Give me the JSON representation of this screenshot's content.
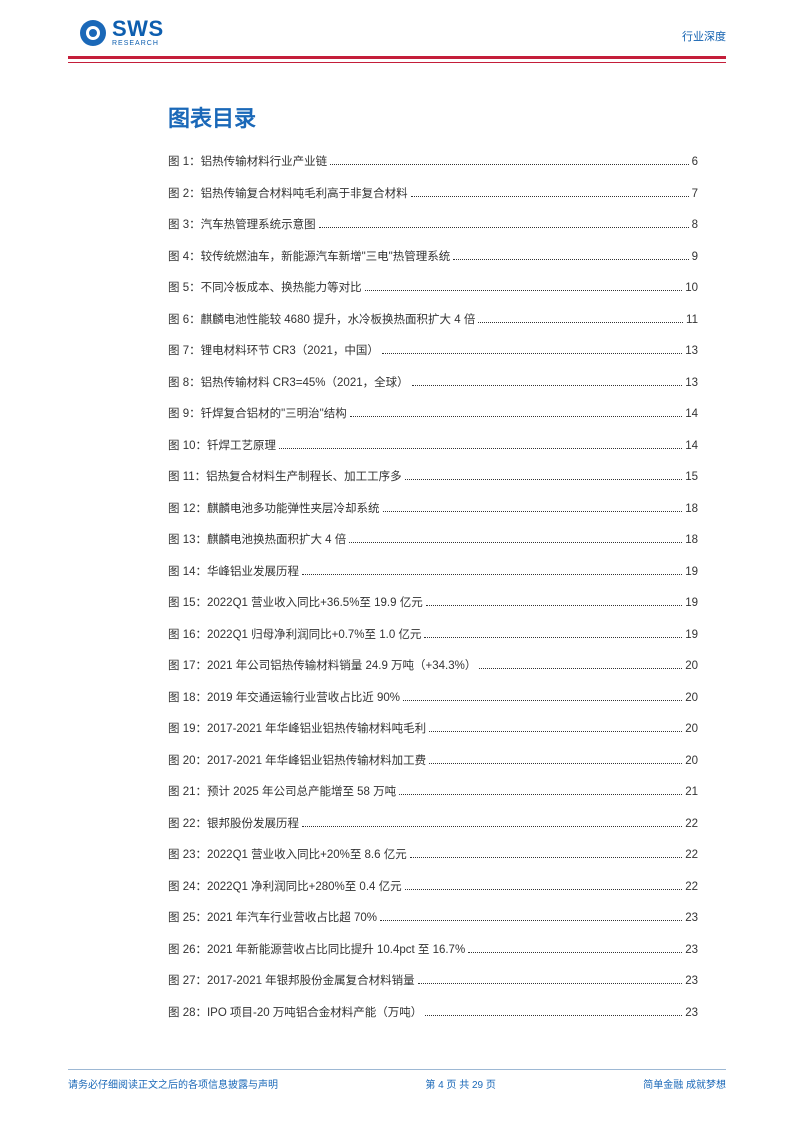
{
  "header": {
    "logo_main": "SWS",
    "logo_sub": "RESEARCH",
    "right_text": "行业深度"
  },
  "title": "图表目录",
  "toc": [
    {
      "label": "图 1：铝热传输材料行业产业链",
      "page": "6"
    },
    {
      "label": "图 2：铝热传输复合材料吨毛利高于非复合材料",
      "page": "7"
    },
    {
      "label": "图 3：汽车热管理系统示意图",
      "page": "8"
    },
    {
      "label": "图 4：较传统燃油车，新能源汽车新增\"三电\"热管理系统",
      "page": "9"
    },
    {
      "label": "图 5：不同冷板成本、换热能力等对比",
      "page": "10"
    },
    {
      "label": "图 6：麒麟电池性能较 4680 提升，水冷板换热面积扩大 4 倍",
      "page": "11"
    },
    {
      "label": "图 7：锂电材料环节 CR3（2021，中国）",
      "page": "13"
    },
    {
      "label": "图 8：铝热传输材料 CR3=45%（2021，全球）",
      "page": "13"
    },
    {
      "label": "图 9：钎焊复合铝材的\"三明治\"结构",
      "page": "14"
    },
    {
      "label": "图 10：钎焊工艺原理",
      "page": "14"
    },
    {
      "label": "图 11：铝热复合材料生产制程长、加工工序多",
      "page": "15"
    },
    {
      "label": "图 12：麒麟电池多功能弹性夹层冷却系统",
      "page": "18"
    },
    {
      "label": "图 13：麒麟电池换热面积扩大 4 倍",
      "page": "18"
    },
    {
      "label": "图 14：华峰铝业发展历程",
      "page": "19"
    },
    {
      "label": "图 15：2022Q1 营业收入同比+36.5%至 19.9 亿元",
      "page": "19"
    },
    {
      "label": "图 16：2022Q1 归母净利润同比+0.7%至 1.0 亿元",
      "page": "19"
    },
    {
      "label": "图 17：2021 年公司铝热传输材料销量 24.9 万吨（+34.3%）",
      "page": "20"
    },
    {
      "label": "图 18：2019 年交通运输行业营收占比近 90%",
      "page": "20"
    },
    {
      "label": "图 19：2017-2021 年华峰铝业铝热传输材料吨毛利",
      "page": "20"
    },
    {
      "label": "图 20：2017-2021 年华峰铝业铝热传输材料加工费",
      "page": "20"
    },
    {
      "label": "图 21：预计 2025 年公司总产能增至 58 万吨",
      "page": "21"
    },
    {
      "label": "图 22：银邦股份发展历程",
      "page": "22"
    },
    {
      "label": "图 23：2022Q1 营业收入同比+20%至 8.6 亿元",
      "page": "22"
    },
    {
      "label": "图 24：2022Q1 净利润同比+280%至 0.4 亿元",
      "page": "22"
    },
    {
      "label": "图 25：2021 年汽车行业营收占比超 70%",
      "page": "23"
    },
    {
      "label": "图 26：2021 年新能源营收占比同比提升 10.4pct 至 16.7%",
      "page": "23"
    },
    {
      "label": "图 27：2017-2021 年银邦股份金属复合材料销量",
      "page": "23"
    },
    {
      "label": "图 28：IPO 项目-20 万吨铝合金材料产能（万吨）",
      "page": "23"
    }
  ],
  "footer": {
    "left": "请务必仔细阅读正文之后的各项信息披露与声明",
    "center": "第 4 页 共 29 页",
    "right": "简单金融 成就梦想"
  },
  "colors": {
    "brand_blue": "#1a68b8",
    "brand_red": "#c41e3a",
    "text_dark": "#333333"
  }
}
